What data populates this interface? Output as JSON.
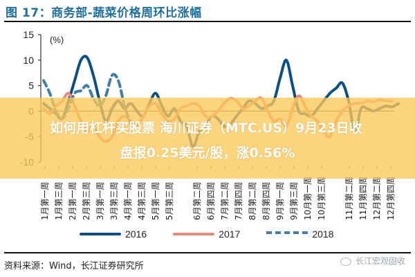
{
  "figure": {
    "title": "图 17：商务部-蔬菜价格周环比涨幅",
    "source": "资料来源：Wind，长江证券研究所",
    "watermark": "长江宏观固收"
  },
  "banner": {
    "line1": "如何用杠杆买股票 海川证券（MTC.US）9月23日收",
    "line2": "盘报0.25美元/股，涨0.56%",
    "color": "#fcc85a"
  },
  "chart_data": {
    "type": "line",
    "title": "商务部-蔬菜价格周环比涨幅",
    "ylabel": "(%)",
    "xlabel": "",
    "ylim": [
      -10,
      15
    ],
    "yticks": [
      15,
      10,
      5,
      0,
      -5,
      -10
    ],
    "grid": false,
    "legend_position": "bottom",
    "categories": [
      "1月第一周",
      "1月第三周",
      "2月第一周",
      "2月第三周",
      "3月第一周",
      "3月第三周",
      "4月第一周",
      "4月第三周",
      "5月第一周",
      "5月第三周",
      "",
      "6月第二周",
      "6月第四周",
      "7月第二周",
      "7月第四周",
      "8月第二周",
      "8月第四周",
      "9月第一周",
      "9月第三周",
      "10月第一周",
      "10月第三周",
      "",
      "11月第二周",
      "11月第四周",
      "12月第二周",
      "12月第四周"
    ],
    "weeks": 52,
    "series": [
      {
        "name": "2016",
        "color": "#0b4f85",
        "dash": "solid",
        "values": [
          1.5,
          0.5,
          -0.5,
          -1.5,
          2.0,
          6.0,
          10.0,
          10.5,
          7.0,
          2.0,
          -2.0,
          0.5,
          2.0,
          0.5,
          1.5,
          0.0,
          -1.0,
          1.5,
          3.5,
          1.0,
          -1.0,
          0.5,
          -2.0,
          -3.0,
          -7.0,
          -4.0,
          -3.0,
          -1.0,
          -1.5,
          -3.0,
          -2.5,
          -1.0,
          0.5,
          2.0,
          1.5,
          0.5,
          1.0,
          2.0,
          6.5,
          10.0,
          5.0,
          0.0,
          -0.5,
          -1.0,
          0.5,
          2.0,
          3.5,
          4.5,
          5.5,
          2.0,
          -4.0,
          0.5,
          0.5,
          0.0,
          0.5,
          1.0,
          0.8,
          1.5
        ]
      },
      {
        "name": "2017",
        "color": "#e88a7c",
        "dash": "solid",
        "values": [
          0.5,
          -0.5,
          1.0,
          2.0,
          3.5,
          1.0,
          -2.0,
          -4.0,
          -3.0,
          -5.0,
          -6.0,
          -5.0,
          -2.0,
          -1.0,
          -2.0,
          -3.0,
          -1.0,
          1.0,
          1.5,
          -0.5,
          -2.0,
          -1.5,
          0.5,
          1.0,
          1.5,
          1.0,
          -1.0,
          -1.0,
          0.0,
          1.5,
          2.5,
          2.0,
          0.5,
          1.0,
          2.0,
          2.5,
          0.0,
          -2.0,
          -1.5,
          -3.0,
          0.5,
          3.0,
          1.0,
          -1.0,
          -2.0,
          -4.0,
          -5.0,
          -2.0,
          0.0,
          1.0,
          1.5,
          1.5,
          2.0,
          1.8,
          2.2,
          2.0,
          2.0
        ]
      },
      {
        "name": "2018",
        "color": "#3f7ea6",
        "dash": "dashed",
        "values": [
          6.0,
          3.5,
          0.0,
          -1.5,
          0.5,
          3.5,
          4.0,
          5.0,
          2.5,
          1.0,
          3.0,
          7.0,
          6.0,
          1.0,
          -2.5
        ]
      }
    ]
  },
  "legend": {
    "items": [
      {
        "label": "2016",
        "color": "#0b4f85",
        "dash": false
      },
      {
        "label": "2017",
        "color": "#e88a7c",
        "dash": false
      },
      {
        "label": "2018",
        "color": "#3f7ea6",
        "dash": true
      }
    ]
  }
}
